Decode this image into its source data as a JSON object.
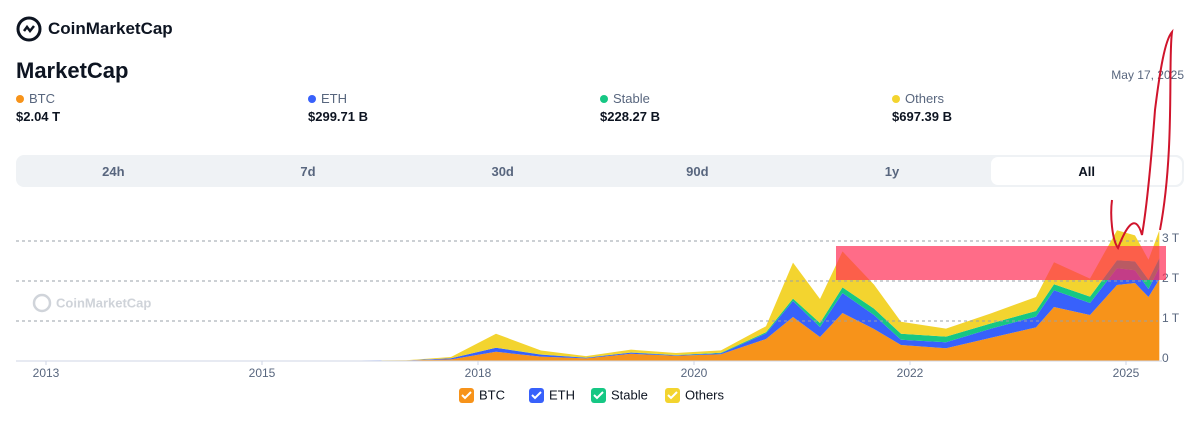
{
  "header": {
    "brand": "CoinMarketCap",
    "title": "MarketCap",
    "date": "May 17, 2025"
  },
  "stats": [
    {
      "label": "BTC",
      "value": "$2.04 T"
    },
    {
      "label": "ETH",
      "value": "$299.71 B"
    },
    {
      "label": "Stable",
      "value": "$228.27 B"
    },
    {
      "label": "Others",
      "value": "$697.39 B"
    }
  ],
  "tabs": [
    "24h",
    "7d",
    "30d",
    "90d",
    "1y",
    "All"
  ],
  "chart_data": {
    "type": "stacked_area",
    "watermark": "CoinMarketCap",
    "x": [
      2013.3,
      2014.0,
      2015.0,
      2016.0,
      2017.0,
      2017.5,
      2018.0,
      2018.5,
      2019.0,
      2019.5,
      2020.0,
      2020.5,
      2021.0,
      2021.3,
      2021.6,
      2021.85,
      2022.2,
      2022.5,
      2023.0,
      2023.5,
      2024.0,
      2024.2,
      2024.6,
      2024.9,
      2025.1,
      2025.25,
      2025.37
    ],
    "series": [
      {
        "name": "BTC",
        "color": "#f7931a",
        "values": [
          0.0015,
          0.01,
          0.004,
          0.006,
          0.016,
          0.04,
          0.23,
          0.11,
          0.065,
          0.18,
          0.13,
          0.17,
          0.55,
          1.1,
          0.6,
          1.2,
          0.8,
          0.4,
          0.32,
          0.58,
          0.84,
          1.35,
          1.15,
          1.9,
          1.95,
          1.6,
          2.04
        ]
      },
      {
        "name": "ETH",
        "color": "#3861fb",
        "values": [
          0,
          0,
          0,
          0.0001,
          0.001,
          0.03,
          0.1,
          0.05,
          0.015,
          0.03,
          0.015,
          0.025,
          0.14,
          0.4,
          0.25,
          0.5,
          0.35,
          0.13,
          0.15,
          0.23,
          0.27,
          0.42,
          0.3,
          0.42,
          0.32,
          0.2,
          0.3
        ]
      },
      {
        "name": "Stable",
        "color": "#16c784",
        "values": [
          0,
          0,
          0,
          0,
          0,
          0,
          0.002,
          0.003,
          0.003,
          0.004,
          0.005,
          0.012,
          0.03,
          0.06,
          0.1,
          0.14,
          0.16,
          0.15,
          0.14,
          0.13,
          0.14,
          0.15,
          0.16,
          0.2,
          0.22,
          0.23,
          0.228
        ]
      },
      {
        "name": "Others",
        "color": "#f3d42f",
        "values": [
          0.0002,
          0.001,
          0.001,
          0.001,
          0.002,
          0.03,
          0.35,
          0.1,
          0.04,
          0.07,
          0.05,
          0.06,
          0.15,
          0.9,
          0.6,
          0.9,
          0.6,
          0.3,
          0.2,
          0.25,
          0.35,
          0.55,
          0.45,
          0.75,
          0.65,
          0.5,
          0.697
        ]
      }
    ],
    "xlim": [
      2012.7,
      2025.4
    ],
    "xticks": [
      {
        "value": 2013,
        "label": "2013"
      },
      {
        "value": 2015.4,
        "label": "2015"
      },
      {
        "value": 2017.8,
        "label": "2018"
      },
      {
        "value": 2020.2,
        "label": "2020"
      },
      {
        "value": 2022.6,
        "label": "2022"
      },
      {
        "value": 2025,
        "label": "2025"
      }
    ],
    "ylim": [
      0,
      3.7
    ],
    "yticks": [
      {
        "value": 0,
        "label": "0"
      },
      {
        "value": 1,
        "label": "1 T"
      },
      {
        "value": 2,
        "label": "2 T"
      },
      {
        "value": 3,
        "label": "3 T"
      }
    ],
    "grid": true
  }
}
